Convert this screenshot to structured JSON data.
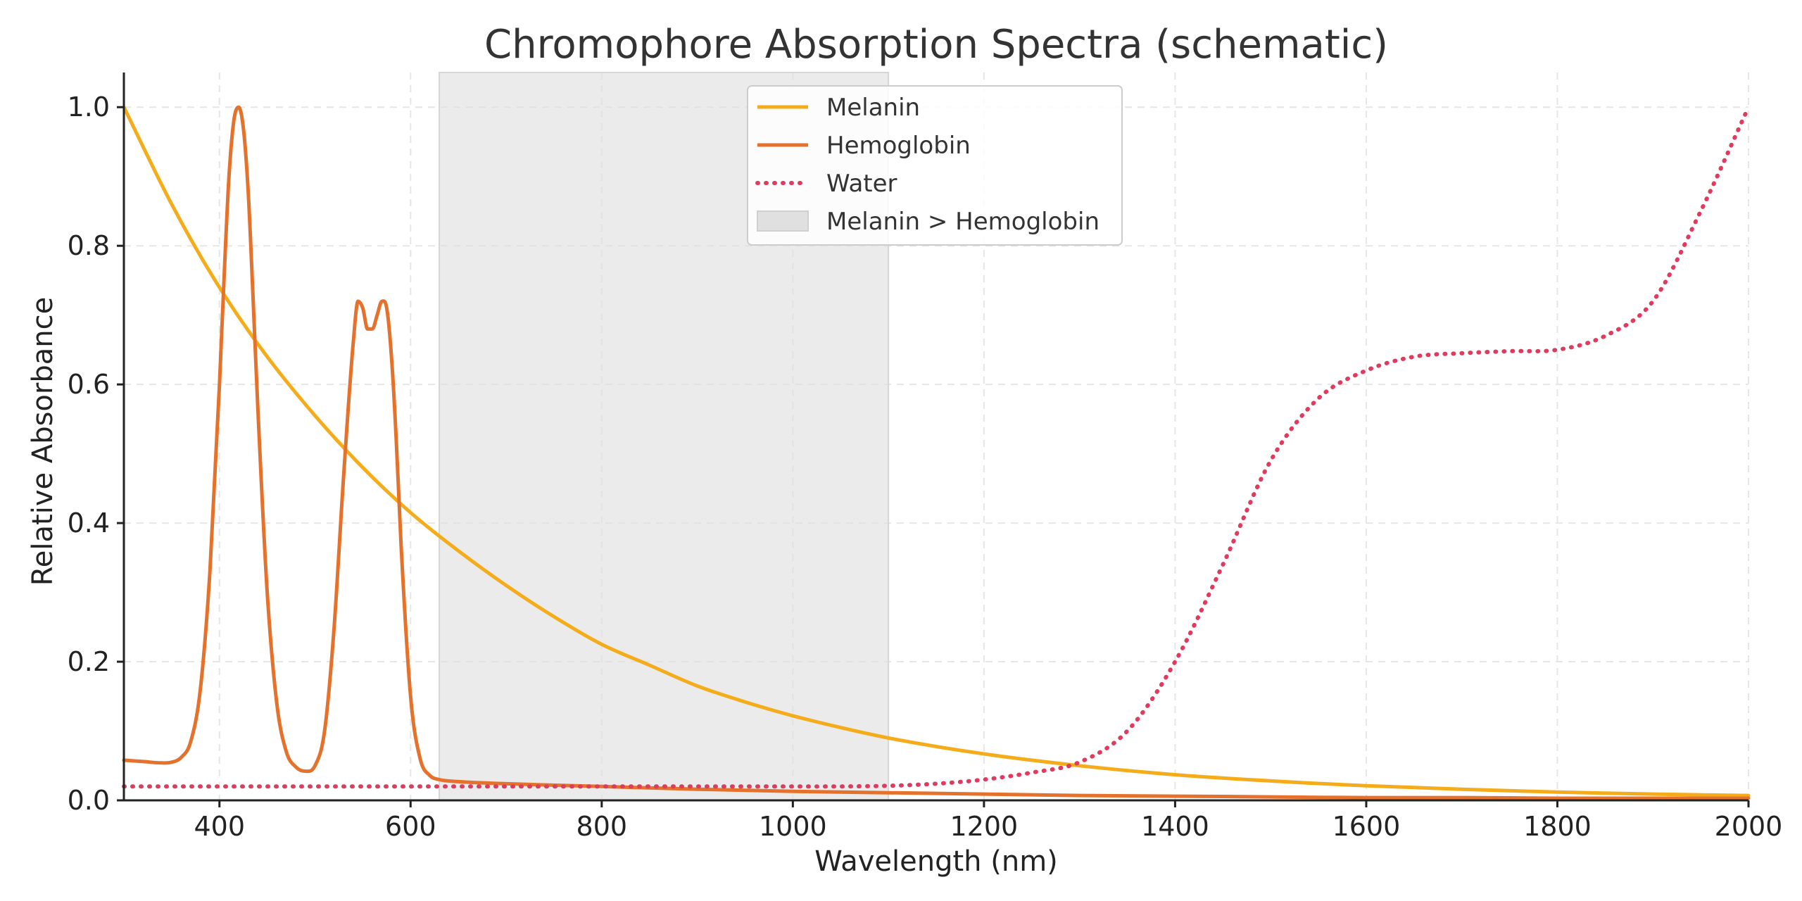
{
  "chart_data": {
    "type": "line",
    "title": "Chromophore Absorption Spectra (schematic)",
    "xlabel": "Wavelength (nm)",
    "ylabel": "Relative Absorbance",
    "xlim": [
      300,
      2000
    ],
    "ylim": [
      0,
      1.05
    ],
    "xticks": [
      400,
      600,
      800,
      1000,
      1200,
      1400,
      1600,
      1800,
      2000
    ],
    "yticks": [
      0.0,
      0.2,
      0.4,
      0.6,
      0.8,
      1.0
    ],
    "xtick_labels": [
      "400",
      "600",
      "800",
      "1000",
      "1200",
      "1400",
      "1600",
      "1800",
      "2000"
    ],
    "ytick_labels": [
      "0.0",
      "0.2",
      "0.4",
      "0.6",
      "0.8",
      "1.0"
    ],
    "grid": true,
    "legend": "top-center",
    "shaded_region": {
      "name": "Melanin > Hemoglobin",
      "x0": 630,
      "x1": 1100,
      "color": "#e0e0e0"
    },
    "series": [
      {
        "name": "Melanin",
        "color": "#f5ac1b",
        "style": "solid",
        "x": [
          300,
          350,
          400,
          450,
          500,
          550,
          600,
          650,
          700,
          750,
          800,
          850,
          900,
          950,
          1000,
          1050,
          1100,
          1200,
          1300,
          1400,
          1500,
          1600,
          1700,
          1800,
          1900,
          2000
        ],
        "y": [
          1.0,
          0.86,
          0.74,
          0.64,
          0.555,
          0.48,
          0.415,
          0.36,
          0.31,
          0.265,
          0.225,
          0.195,
          0.165,
          0.142,
          0.122,
          0.105,
          0.09,
          0.067,
          0.05,
          0.037,
          0.028,
          0.021,
          0.016,
          0.012,
          0.009,
          0.007
        ]
      },
      {
        "name": "Hemoglobin",
        "color": "#e4722c",
        "style": "solid",
        "x": [
          300,
          320,
          340,
          350,
          360,
          370,
          380,
          390,
          400,
          405,
          410,
          415,
          420,
          425,
          430,
          435,
          440,
          450,
          460,
          470,
          480,
          490,
          500,
          510,
          520,
          530,
          540,
          545,
          550,
          555,
          560,
          565,
          570,
          575,
          580,
          585,
          590,
          600,
          610,
          620,
          630,
          650,
          700,
          800,
          900,
          1000,
          1100,
          1200,
          1300,
          1400,
          1500,
          1600,
          1700,
          1800,
          1900,
          2000
        ],
        "y": [
          0.058,
          0.056,
          0.054,
          0.055,
          0.062,
          0.085,
          0.16,
          0.33,
          0.6,
          0.76,
          0.9,
          0.98,
          1.0,
          0.97,
          0.88,
          0.73,
          0.57,
          0.3,
          0.14,
          0.07,
          0.048,
          0.042,
          0.05,
          0.1,
          0.25,
          0.47,
          0.66,
          0.72,
          0.71,
          0.68,
          0.68,
          0.7,
          0.72,
          0.71,
          0.64,
          0.52,
          0.37,
          0.15,
          0.06,
          0.036,
          0.03,
          0.027,
          0.024,
          0.02,
          0.016,
          0.013,
          0.011,
          0.009,
          0.007,
          0.006,
          0.005,
          0.004,
          0.004,
          0.003,
          0.003,
          0.003
        ]
      },
      {
        "name": "Water",
        "color": "#e03a5f",
        "style": "dotted",
        "x": [
          300,
          400,
          600,
          800,
          1000,
          1100,
          1150,
          1200,
          1250,
          1300,
          1350,
          1400,
          1450,
          1500,
          1550,
          1600,
          1650,
          1700,
          1750,
          1800,
          1850,
          1900,
          1950,
          2000
        ],
        "y": [
          0.02,
          0.02,
          0.02,
          0.02,
          0.02,
          0.021,
          0.024,
          0.03,
          0.04,
          0.055,
          0.1,
          0.2,
          0.34,
          0.49,
          0.58,
          0.62,
          0.64,
          0.645,
          0.648,
          0.65,
          0.67,
          0.72,
          0.85,
          1.0
        ]
      }
    ]
  }
}
